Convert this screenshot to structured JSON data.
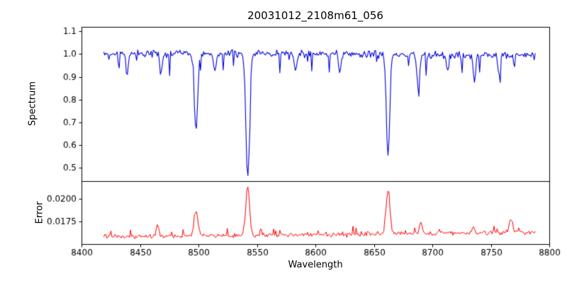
{
  "chart_data": {
    "type": "line",
    "title": "20031012_2108m61_056",
    "xlabel": "Wavelength",
    "xlim": [
      8400,
      8800
    ],
    "xticks": [
      8400,
      8450,
      8500,
      8550,
      8600,
      8650,
      8700,
      8750,
      8800
    ],
    "x_data_range": [
      8419,
      8788
    ],
    "n_points": 420,
    "seed": 42,
    "grid": false,
    "legend": "none",
    "panels": [
      {
        "name": "spectrum",
        "ylabel": "Spectrum",
        "ylim": [
          0.44,
          1.12
        ],
        "yticks": [
          0.5,
          0.6,
          0.7,
          0.8,
          0.9,
          1.0,
          1.1
        ],
        "ytick_decimals": 1,
        "color": "#0000dd",
        "line_width": 1.1,
        "baseline": 1.0,
        "baseline_slope": -2e-05,
        "baseline_ref": 8600,
        "noise_amp": 0.022,
        "spike_prob": 0.1,
        "spike_amp": 0.1,
        "spike_sign": -1,
        "features": [
          {
            "center": 8498.0,
            "amplitude": -0.34,
            "sigma": 1.3
          },
          {
            "center": 8542.1,
            "amplitude": -0.55,
            "sigma": 1.5
          },
          {
            "center": 8662.1,
            "amplitude": -0.45,
            "sigma": 1.4
          },
          {
            "center": 8439.0,
            "amplitude": -0.1,
            "sigma": 1.0
          },
          {
            "center": 8468.0,
            "amplitude": -0.09,
            "sigma": 1.0
          },
          {
            "center": 8514.0,
            "amplitude": -0.08,
            "sigma": 1.0
          },
          {
            "center": 8583.0,
            "amplitude": -0.07,
            "sigma": 1.0
          },
          {
            "center": 8621.0,
            "amplitude": -0.08,
            "sigma": 1.0
          },
          {
            "center": 8688.0,
            "amplitude": -0.15,
            "sigma": 1.2
          },
          {
            "center": 8713.0,
            "amplitude": -0.08,
            "sigma": 1.0
          },
          {
            "center": 8736.0,
            "amplitude": -0.12,
            "sigma": 1.0
          },
          {
            "center": 8757.0,
            "amplitude": -0.08,
            "sigma": 1.0
          }
        ]
      },
      {
        "name": "error",
        "ylabel": "Error",
        "ylim": [
          0.015,
          0.022
        ],
        "yticks": [
          0.0175,
          0.02
        ],
        "ytick_decimals": 4,
        "color": "#ff0000",
        "line_width": 1.0,
        "baseline": 0.01605,
        "baseline_slope": 1.3e-06,
        "baseline_ref": 8600,
        "noise_amp": 0.00035,
        "spike_prob": 0.08,
        "spike_amp": 0.0009,
        "spike_sign": 1,
        "features": [
          {
            "center": 8498.0,
            "amplitude": 0.0028,
            "sigma": 1.6
          },
          {
            "center": 8542.1,
            "amplitude": 0.0055,
            "sigma": 1.6
          },
          {
            "center": 8662.1,
            "amplitude": 0.0048,
            "sigma": 1.6
          },
          {
            "center": 8465.0,
            "amplitude": 0.0013,
            "sigma": 1.2
          },
          {
            "center": 8690.0,
            "amplitude": 0.0013,
            "sigma": 1.2
          },
          {
            "center": 8735.0,
            "amplitude": 0.0008,
            "sigma": 1.0
          },
          {
            "center": 8767.0,
            "amplitude": 0.0016,
            "sigma": 1.2
          }
        ]
      }
    ]
  }
}
